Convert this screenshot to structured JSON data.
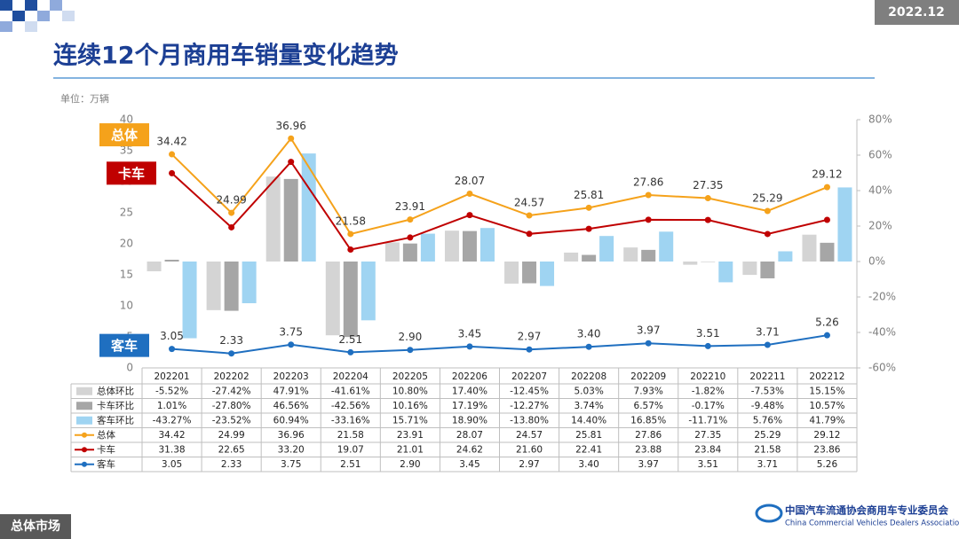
{
  "header": {
    "date": "2022.12",
    "title": "连续12个月商用车销量变化趋势",
    "unit": "单位：万辆"
  },
  "footer": {
    "section": "总体市场",
    "org_cn": "中国汽车流通协会商用车专业委员会",
    "org_en": "China Commercial Vehicles Dealers Association"
  },
  "chart_data": {
    "type": "combo",
    "categories": [
      "202201",
      "202202",
      "202203",
      "202204",
      "202205",
      "202206",
      "202207",
      "202208",
      "202209",
      "202210",
      "202211",
      "202212"
    ],
    "ylim": [
      0,
      40
    ],
    "yticks": [
      0,
      5,
      10,
      15,
      20,
      25,
      30,
      35,
      40
    ],
    "y2lim": [
      -60,
      80
    ],
    "y2ticks": [
      {
        "value": -60,
        "label": "-60%"
      },
      {
        "value": -40,
        "label": "-40%"
      },
      {
        "value": -20,
        "label": "-20%"
      },
      {
        "value": 0,
        "label": "0%"
      },
      {
        "value": 20,
        "label": "20%"
      },
      {
        "value": 40,
        "label": "40%"
      },
      {
        "value": 60,
        "label": "60%"
      },
      {
        "value": 80,
        "label": "80%"
      }
    ],
    "grid": false,
    "series": [
      {
        "name": "总体环比",
        "type": "bar",
        "axis": "y2",
        "color": "#d4d4d4",
        "values": [
          -5.52,
          -27.42,
          47.91,
          -41.61,
          10.8,
          17.4,
          -12.45,
          5.03,
          7.93,
          -1.82,
          -7.53,
          15.15
        ],
        "value_labels": [
          "-5.52%",
          "-27.42%",
          "47.91%",
          "-41.61%",
          "10.80%",
          "17.40%",
          "-12.45%",
          "5.03%",
          "7.93%",
          "-1.82%",
          "-7.53%",
          "15.15%"
        ]
      },
      {
        "name": "卡车环比",
        "type": "bar",
        "axis": "y2",
        "color": "#a6a6a6",
        "values": [
          1.01,
          -27.8,
          46.56,
          -42.56,
          10.16,
          17.19,
          -12.27,
          3.74,
          6.57,
          -0.17,
          -9.48,
          10.57
        ],
        "value_labels": [
          "1.01%",
          "-27.80%",
          "46.56%",
          "-42.56%",
          "10.16%",
          "17.19%",
          "-12.27%",
          "3.74%",
          "6.57%",
          "-0.17%",
          "-9.48%",
          "10.57%"
        ]
      },
      {
        "name": "客车环比",
        "type": "bar",
        "axis": "y2",
        "color": "#9fd4f2",
        "values": [
          -43.27,
          -23.52,
          60.94,
          -33.16,
          15.71,
          18.9,
          -13.8,
          14.4,
          16.85,
          -11.71,
          5.76,
          41.79
        ],
        "value_labels": [
          "-43.27%",
          "-23.52%",
          "60.94%",
          "-33.16%",
          "15.71%",
          "18.90%",
          "-13.80%",
          "14.40%",
          "16.85%",
          "-11.71%",
          "5.76%",
          "41.79%"
        ]
      },
      {
        "name": "总体",
        "type": "line",
        "color": "#f5a21b",
        "show_labels": true,
        "values": [
          34.42,
          24.99,
          36.96,
          21.58,
          23.91,
          28.07,
          24.57,
          25.81,
          27.86,
          27.35,
          25.29,
          29.12
        ]
      },
      {
        "name": "卡车",
        "type": "line",
        "color": "#c00000",
        "show_labels": false,
        "values": [
          31.38,
          22.65,
          33.2,
          19.07,
          21.01,
          24.62,
          21.6,
          22.41,
          23.88,
          23.84,
          21.58,
          23.86
        ],
        "value_labels": [
          "31.38",
          "22.65",
          "33.20",
          "19.07",
          "21.01",
          "24.62",
          "21.60",
          "22.41",
          "23.88",
          "23.84",
          "21.58",
          "23.86"
        ]
      },
      {
        "name": "客车",
        "type": "line",
        "color": "#1f6fc0",
        "show_labels": true,
        "values": [
          3.05,
          2.33,
          3.75,
          2.51,
          2.9,
          3.45,
          2.97,
          3.4,
          3.97,
          3.51,
          3.71,
          5.26
        ],
        "value_labels": [
          "3.05",
          "2.33",
          "3.75",
          "2.51",
          "2.90",
          "3.45",
          "2.97",
          "3.40",
          "3.97",
          "3.51",
          "3.71",
          "5.26"
        ]
      }
    ]
  }
}
